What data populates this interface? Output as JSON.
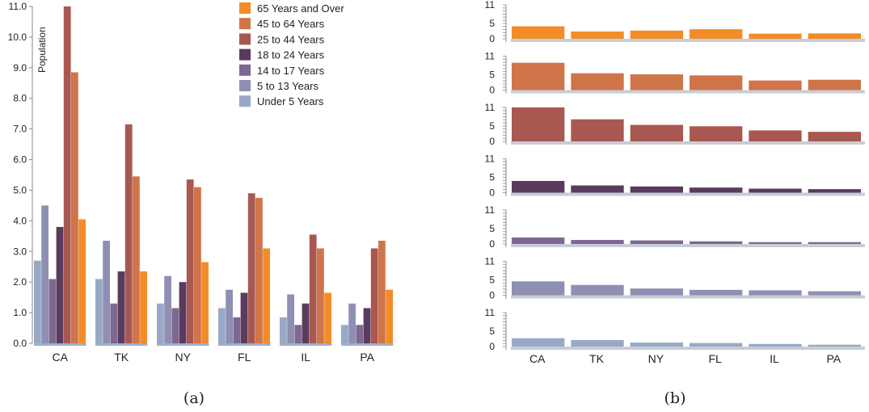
{
  "chart_data": [
    {
      "type": "bar",
      "panel_caption": "(a)",
      "ylabel": "Population",
      "ylim": [
        0,
        11
      ],
      "yticks": [
        "0.0",
        "1.0",
        "2.0",
        "3.0",
        "4.0",
        "5.0",
        "6.0",
        "7.0",
        "8.0",
        "9.0",
        "10.0",
        "11.0"
      ],
      "categories": [
        "CA",
        "TK",
        "NY",
        "FL",
        "IL",
        "PA"
      ],
      "legend_position": "top-center",
      "series": [
        {
          "name": "Under 5 Years",
          "color": "#98a9c6",
          "values": [
            2.7,
            2.1,
            1.3,
            1.15,
            0.85,
            0.6
          ]
        },
        {
          "name": "5 to 13 Years",
          "color": "#8f8fb3",
          "values": [
            4.5,
            3.35,
            2.2,
            1.75,
            1.6,
            1.3
          ]
        },
        {
          "name": "14 to 17 Years",
          "color": "#7d6890",
          "values": [
            2.1,
            1.3,
            1.15,
            0.85,
            0.6,
            0.6
          ]
        },
        {
          "name": "18 to 24 Years",
          "color": "#5a3b5e",
          "values": [
            3.8,
            2.35,
            2.0,
            1.65,
            1.3,
            1.15
          ]
        },
        {
          "name": "25 to 44 Years",
          "color": "#a85850",
          "values": [
            11.0,
            7.15,
            5.35,
            4.9,
            3.55,
            3.1
          ]
        },
        {
          "name": "45 to 64 Years",
          "color": "#d0744a",
          "values": [
            8.85,
            5.45,
            5.1,
            4.75,
            3.1,
            3.35
          ]
        },
        {
          "name": "65 Years and Over",
          "color": "#f28c28",
          "values": [
            4.05,
            2.35,
            2.65,
            3.1,
            1.65,
            1.75
          ]
        }
      ]
    },
    {
      "type": "bar",
      "variant": "small-multiples",
      "panel_caption": "(b)",
      "ylim": [
        0,
        11
      ],
      "yticks": [
        "0",
        "5",
        "11"
      ],
      "categories": [
        "CA",
        "TK",
        "NY",
        "FL",
        "IL",
        "PA"
      ],
      "rows_order": [
        "65 Years and Over",
        "45 to 64 Years",
        "25 to 44 Years",
        "18 to 24 Years",
        "14 to 17 Years",
        "5 to 13 Years",
        "Under 5 Years"
      ]
    }
  ]
}
